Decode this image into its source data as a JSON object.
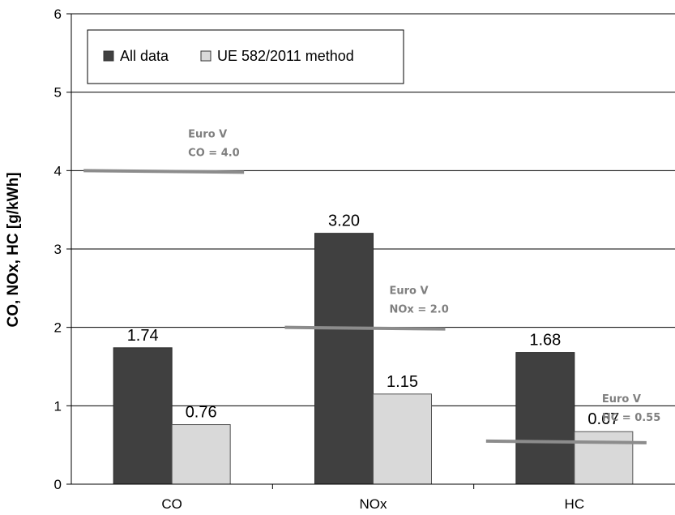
{
  "chart_data": {
    "type": "bar",
    "categories": [
      "CO",
      "NOx",
      "HC"
    ],
    "series": [
      {
        "name": "All data",
        "values": [
          1.74,
          3.2,
          1.68
        ],
        "labels": [
          "1.74",
          "3.20",
          "1.68"
        ],
        "color": "#404040"
      },
      {
        "name": "UE 582/2011 method",
        "values": [
          0.76,
          1.15,
          0.67
        ],
        "labels": [
          "0.76",
          "1.15",
          "0.67"
        ],
        "color": "#d9d9d9"
      }
    ],
    "ylabel": "CO, NOx, HC [g/kWh]",
    "ylim": [
      0,
      6
    ],
    "yticks": [
      "0",
      "1",
      "2",
      "3",
      "4",
      "5",
      "6"
    ],
    "grid": true,
    "legend_position": "top-left",
    "limits": [
      {
        "category": "CO",
        "value": 4.0,
        "line1": "Euro V",
        "line2": "CO = 4.0"
      },
      {
        "category": "NOx",
        "value": 2.0,
        "line1": "Euro V",
        "line2": "NOx = 2.0"
      },
      {
        "category": "HC",
        "value": 0.55,
        "line1": "Euro V",
        "line2": "HC = 0.55"
      }
    ],
    "limit_color": "#8c8c8c"
  }
}
